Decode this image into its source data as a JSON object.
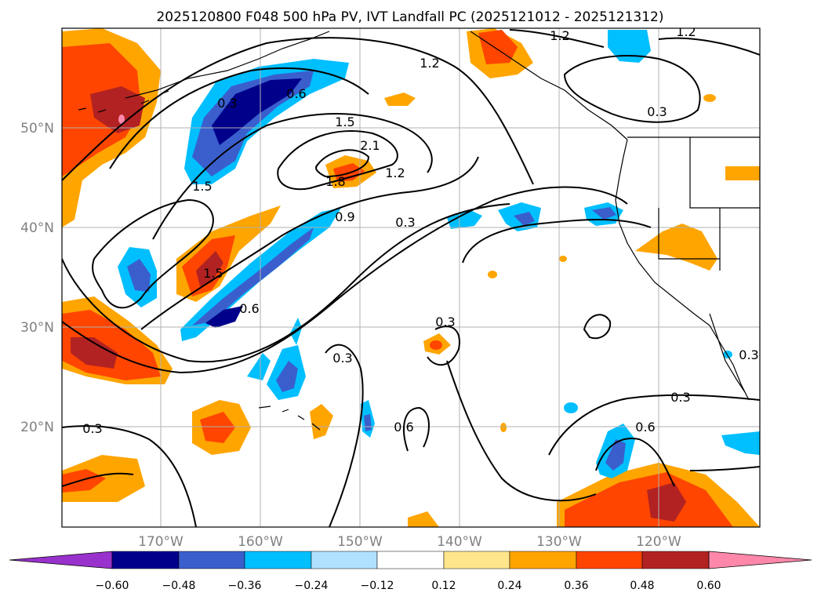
{
  "title": "2025120800 F048 500 hPa PV, IVT Landfall PC (2025121012 - 2025121312)",
  "lat_labels": [
    "50°N",
    "40°N",
    "30°N",
    "20°N"
  ],
  "lon_labels": [
    "170°W",
    "160°W",
    "150°W",
    "140°W",
    "130°W",
    "120°W"
  ],
  "contour_labels": [
    "1.2",
    "1.2",
    "1.2",
    "0.3",
    "0.3",
    "0.6",
    "1.5",
    "2.1",
    "1.8",
    "1.2",
    "1.5",
    "0.9",
    "0.3",
    "1.5",
    "0.6",
    "0.3",
    "0.3",
    "0.3",
    "0.6",
    "0.6",
    "0.3",
    "0.3"
  ],
  "colorbar": {
    "colors": [
      "#9932cc",
      "#00008b",
      "#3a5fcd",
      "#00bfff",
      "#b0e2ff",
      "#ffffff",
      "#ffe68a",
      "#ffa500",
      "#ff4500",
      "#b22222",
      "#ff88aa"
    ],
    "tick_labels": [
      "−0.60",
      "−0.48",
      "−0.36",
      "−0.24",
      "−0.12",
      "0.12",
      "0.24",
      "0.36",
      "0.48",
      "0.60"
    ]
  },
  "fill_colors": {
    "neg_light": "#00bfff",
    "neg_mid": "#3a5fcd",
    "neg_dark": "#00008b",
    "pos_light": "#ffa500",
    "pos_mid": "#ff4500",
    "pos_dark": "#b22222",
    "pos_max": "#ff88aa"
  }
}
